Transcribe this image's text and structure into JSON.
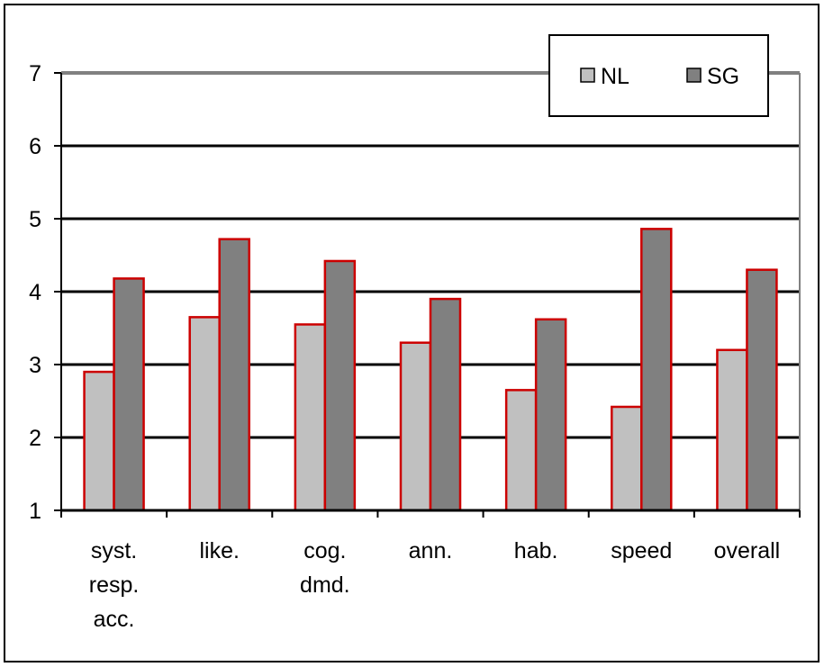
{
  "chart_data": {
    "type": "bar",
    "categories": [
      [
        "syst.",
        "resp.",
        "acc."
      ],
      [
        "like."
      ],
      [
        "cog.",
        "dmd."
      ],
      [
        "ann."
      ],
      [
        "hab."
      ],
      [
        "speed"
      ],
      [
        "overall"
      ]
    ],
    "series": [
      {
        "name": "NL",
        "color": "#c0c0c0",
        "values": [
          2.9,
          3.65,
          3.55,
          3.3,
          2.65,
          2.42,
          3.2
        ]
      },
      {
        "name": "SG",
        "color": "#808080",
        "values": [
          4.18,
          4.72,
          4.42,
          3.9,
          3.62,
          4.86,
          4.3
        ]
      }
    ],
    "bar_outline_color": "#cc0000",
    "ylim": [
      1,
      7
    ],
    "yticks": [
      1,
      2,
      3,
      4,
      5,
      6,
      7
    ],
    "grid": true,
    "legend": "top-right",
    "title": "",
    "xlabel": "",
    "ylabel": ""
  }
}
